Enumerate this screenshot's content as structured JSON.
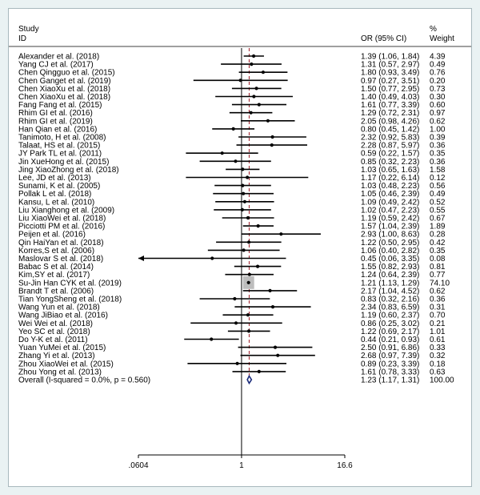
{
  "headers": {
    "study": "Study",
    "id": "ID",
    "or": "OR (95% CI)",
    "pct": "%",
    "weight": "Weight"
  },
  "chart_data": {
    "type": "forest",
    "scale": "log",
    "x_ticks": [
      {
        "value": 0.0604,
        "label": ".0604"
      },
      {
        "value": 1,
        "label": "1"
      },
      {
        "value": 16.6,
        "label": "16.6"
      }
    ],
    "xlim": [
      0.0604,
      16.6
    ],
    "null_line": 1,
    "overall_line": 1.23,
    "colors": {
      "point": "#000000",
      "box": "#bdbdbd",
      "overall_line": "#a0202a",
      "diamond": "#1a2a7a"
    },
    "studies": [
      {
        "name": "Alexander et al. (2018)",
        "or": 1.39,
        "lo": 1.06,
        "hi": 1.84,
        "ci": "1.39 (1.06, 1.84)",
        "weight": "4.39"
      },
      {
        "name": "Yang CJ et al. (2017)",
        "or": 1.31,
        "lo": 0.57,
        "hi": 2.97,
        "ci": "1.31 (0.57, 2.97)",
        "weight": "0.49"
      },
      {
        "name": "Chen Qingguo et al. (2015)",
        "or": 1.8,
        "lo": 0.93,
        "hi": 3.49,
        "ci": "1.80 (0.93, 3.49)",
        "weight": "0.76"
      },
      {
        "name": "Chen Ganget et al. (2019)",
        "or": 0.97,
        "lo": 0.27,
        "hi": 3.51,
        "ci": "0.97 (0.27, 3.51)",
        "weight": "0.20"
      },
      {
        "name": "Chen XiaoXu et al. (2018)",
        "or": 1.5,
        "lo": 0.77,
        "hi": 2.95,
        "ci": "1.50 (0.77, 2.95)",
        "weight": "0.73"
      },
      {
        "name": "Chen XiaoXu et al. (2018)",
        "or": 1.4,
        "lo": 0.49,
        "hi": 4.03,
        "ci": "1.40 (0.49, 4.03)",
        "weight": "0.30"
      },
      {
        "name": "Fang Fang et al. (2015)",
        "or": 1.61,
        "lo": 0.77,
        "hi": 3.39,
        "ci": "1.61 (0.77, 3.39)",
        "weight": "0.60"
      },
      {
        "name": "Rhim GI et al. (2016)",
        "or": 1.29,
        "lo": 0.72,
        "hi": 2.31,
        "ci": "1.29 (0.72, 2.31)",
        "weight": "0.97"
      },
      {
        "name": "Rhim GI et al. (2019)",
        "or": 2.05,
        "lo": 0.98,
        "hi": 4.26,
        "ci": "2.05 (0.98, 4.26)",
        "weight": "0.62"
      },
      {
        "name": "Han Qian et al. (2016)",
        "or": 0.8,
        "lo": 0.45,
        "hi": 1.42,
        "ci": "0.80 (0.45, 1.42)",
        "weight": "1.00"
      },
      {
        "name": "Tanimoto, H et al. (2008)",
        "or": 2.32,
        "lo": 0.92,
        "hi": 5.83,
        "ci": "2.32 (0.92, 5.83)",
        "weight": "0.39"
      },
      {
        "name": "Talaat, HS et al. (2015)",
        "or": 2.28,
        "lo": 0.87,
        "hi": 5.97,
        "ci": "2.28 (0.87, 5.97)",
        "weight": "0.36"
      },
      {
        "name": "JY Park TL et al. (2011)",
        "or": 0.59,
        "lo": 0.22,
        "hi": 1.57,
        "ci": "0.59 (0.22, 1.57)",
        "weight": "0.35"
      },
      {
        "name": "Jin XueHong et al. (2015)",
        "or": 0.85,
        "lo": 0.32,
        "hi": 2.23,
        "ci": "0.85 (0.32, 2.23)",
        "weight": "0.36"
      },
      {
        "name": "Jing XiaoZhong et al. (2018)",
        "or": 1.03,
        "lo": 0.65,
        "hi": 1.63,
        "ci": "1.03 (0.65, 1.63)",
        "weight": "1.58"
      },
      {
        "name": "Lee, JD et al. (2013)",
        "or": 1.17,
        "lo": 0.22,
        "hi": 6.14,
        "ci": "1.17 (0.22, 6.14)",
        "weight": "0.12"
      },
      {
        "name": "Sunami, K et al. (2005)",
        "or": 1.03,
        "lo": 0.48,
        "hi": 2.23,
        "ci": "1.03 (0.48, 2.23)",
        "weight": "0.56"
      },
      {
        "name": "Pollak L et al. (2018)",
        "or": 1.05,
        "lo": 0.46,
        "hi": 2.39,
        "ci": "1.05 (0.46, 2.39)",
        "weight": "0.49"
      },
      {
        "name": "Kansu, L et al. (2010)",
        "or": 1.09,
        "lo": 0.49,
        "hi": 2.42,
        "ci": "1.09 (0.49, 2.42)",
        "weight": "0.52"
      },
      {
        "name": "Liu Xianghong et al. (2009)",
        "or": 1.02,
        "lo": 0.47,
        "hi": 2.23,
        "ci": "1.02 (0.47, 2.23)",
        "weight": "0.55"
      },
      {
        "name": "Liu XiaoWei et al. (2018)",
        "or": 1.19,
        "lo": 0.59,
        "hi": 2.42,
        "ci": "1.19 (0.59, 2.42)",
        "weight": "0.67"
      },
      {
        "name": "Picciotti PM et al. (2016)",
        "or": 1.57,
        "lo": 1.04,
        "hi": 2.39,
        "ci": "1.57 (1.04, 2.39)",
        "weight": "1.89"
      },
      {
        "name": "Peijen et al. (2016)",
        "or": 2.93,
        "lo": 1.0,
        "hi": 8.63,
        "ci": "2.93 (1.00, 8.63)",
        "weight": "0.28"
      },
      {
        "name": "Qin HaiYan et al. (2018)",
        "or": 1.22,
        "lo": 0.5,
        "hi": 2.95,
        "ci": "1.22 (0.50, 2.95)",
        "weight": "0.42"
      },
      {
        "name": "Korres,S et al. (2006)",
        "or": 1.06,
        "lo": 0.4,
        "hi": 2.82,
        "ci": "1.06 (0.40, 2.82)",
        "weight": "0.35"
      },
      {
        "name": "Maslovar S et al. (2018)",
        "or": 0.45,
        "lo": 0.06,
        "hi": 3.35,
        "ci": "0.45 (0.06, 3.35)",
        "weight": "0.08",
        "arrow_left": true
      },
      {
        "name": "Babac S et al. (2014)",
        "or": 1.55,
        "lo": 0.82,
        "hi": 2.93,
        "ci": "1.55 (0.82, 2.93)",
        "weight": "0.81"
      },
      {
        "name": "Kim,SY et al. (2017)",
        "or": 1.24,
        "lo": 0.64,
        "hi": 2.39,
        "ci": "1.24 (0.64, 2.39)",
        "weight": "0.77"
      },
      {
        "name": "Su-Jin Han CYK et al. (2019)",
        "or": 1.21,
        "lo": 1.13,
        "hi": 1.29,
        "ci": "1.21 (1.13, 1.29)",
        "weight": "74.10",
        "big": true
      },
      {
        "name": "Brandt T et al. (2006)",
        "or": 2.17,
        "lo": 1.04,
        "hi": 4.52,
        "ci": "2.17 (1.04, 4.52)",
        "weight": "0.62"
      },
      {
        "name": "Tian YongSheng et al. (2018)",
        "or": 0.83,
        "lo": 0.32,
        "hi": 2.16,
        "ci": "0.83 (0.32, 2.16)",
        "weight": "0.36"
      },
      {
        "name": "Wang Yun et al. (2018)",
        "or": 2.34,
        "lo": 0.83,
        "hi": 6.59,
        "ci": "2.34 (0.83, 6.59)",
        "weight": "0.31"
      },
      {
        "name": "Wang JiBiao et al. (2016)",
        "or": 1.19,
        "lo": 0.6,
        "hi": 2.37,
        "ci": "1.19 (0.60, 2.37)",
        "weight": "0.70"
      },
      {
        "name": "Wei Wei et al. (2018)",
        "or": 0.86,
        "lo": 0.25,
        "hi": 3.02,
        "ci": "0.86 (0.25, 3.02)",
        "weight": "0.21"
      },
      {
        "name": "Yeo SC et al. (2018)",
        "or": 1.22,
        "lo": 0.69,
        "hi": 2.17,
        "ci": "1.22 (0.69, 2.17)",
        "weight": "1.01"
      },
      {
        "name": "Do Y-K et al. (2011)",
        "or": 0.44,
        "lo": 0.21,
        "hi": 0.93,
        "ci": "0.44 (0.21, 0.93)",
        "weight": "0.61"
      },
      {
        "name": "Yuan YuMei et al. (2015)",
        "or": 2.5,
        "lo": 0.91,
        "hi": 6.86,
        "ci": "2.50 (0.91, 6.86)",
        "weight": "0.33"
      },
      {
        "name": "Zhang Yi et al. (2013)",
        "or": 2.68,
        "lo": 0.97,
        "hi": 7.39,
        "ci": "2.68 (0.97, 7.39)",
        "weight": "0.32"
      },
      {
        "name": "Zhou XiaoWei et al. (2015)",
        "or": 0.89,
        "lo": 0.23,
        "hi": 3.39,
        "ci": "0.89 (0.23, 3.39)",
        "weight": "0.18"
      },
      {
        "name": "Zhou Yong et al. (2013)",
        "or": 1.61,
        "lo": 0.78,
        "hi": 3.33,
        "ci": "1.61 (0.78, 3.33)",
        "weight": "0.63"
      }
    ],
    "overall": {
      "name": "Overall  (I-squared = 0.0%, p = 0.560)",
      "or": 1.23,
      "lo": 1.17,
      "hi": 1.31,
      "ci": "1.23 (1.17, 1.31)",
      "weight": "100.00"
    }
  }
}
